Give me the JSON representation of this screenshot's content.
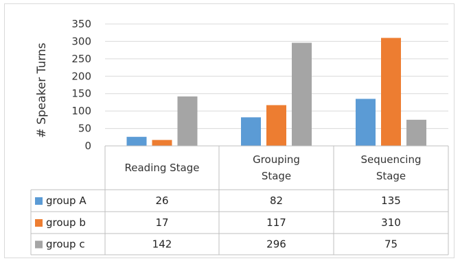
{
  "chart_data": {
    "type": "bar",
    "categories": [
      [
        "Reading Stage"
      ],
      [
        "Grouping",
        "Stage"
      ],
      [
        "Sequencing",
        "Stage"
      ]
    ],
    "series": [
      {
        "name": "group A",
        "color": "#5b9bd5",
        "values": [
          26,
          82,
          135
        ]
      },
      {
        "name": "group b",
        "color": "#ed7d31",
        "values": [
          17,
          117,
          310
        ]
      },
      {
        "name": "group c",
        "color": "#a5a5a5",
        "values": [
          142,
          296,
          75
        ]
      }
    ],
    "title": "",
    "xlabel": "",
    "ylabel": "# Speaker Turns",
    "ylim": [
      0,
      350
    ],
    "yticks": [
      0,
      50,
      100,
      150,
      200,
      250,
      300,
      350
    ],
    "grid": true,
    "legend": "data table"
  }
}
